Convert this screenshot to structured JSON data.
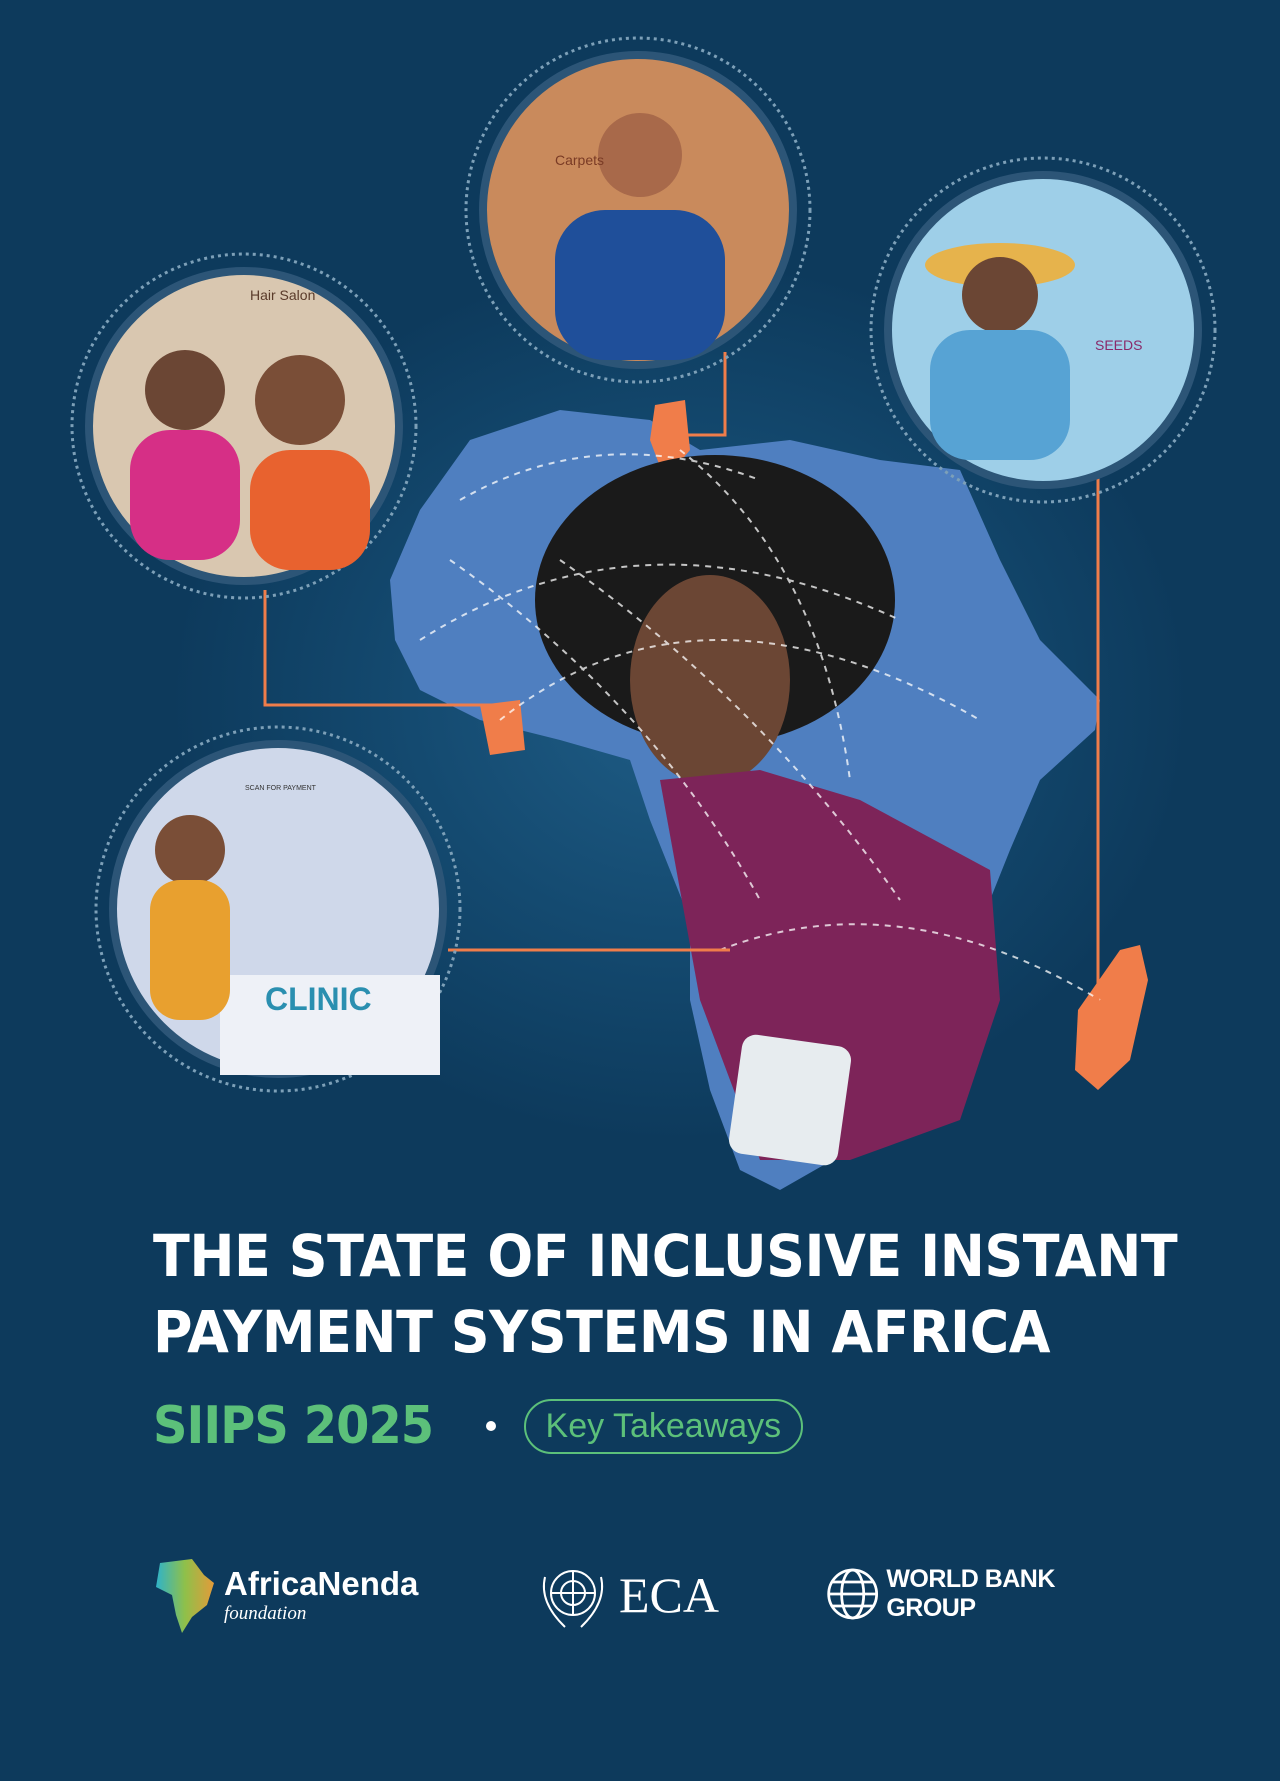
{
  "cover": {
    "title_line1": "THE STATE OF INCLUSIVE INSTANT",
    "title_line2": "PAYMENT SYSTEMS IN AFRICA",
    "edition": "SIIPS 2025",
    "badge": "Key Takeaways"
  },
  "illustration": {
    "hair_salon_sign": "Hair Salon",
    "carpets_sign": "Carpets",
    "seeds_sign": "SEEDS",
    "clinic_sign": "CLINIC",
    "scan_sign": "SCAN FOR PAYMENT"
  },
  "logos": {
    "africanenda_name": "AfricaNenda",
    "africanenda_sub": "foundation",
    "eca": "ECA",
    "worldbank": "WORLD BANK GROUP"
  },
  "colors": {
    "background": "#0d3a5c",
    "accent_green": "#5cc07a",
    "accent_orange": "#f07d4a",
    "map_blue": "#4f7fc0"
  }
}
